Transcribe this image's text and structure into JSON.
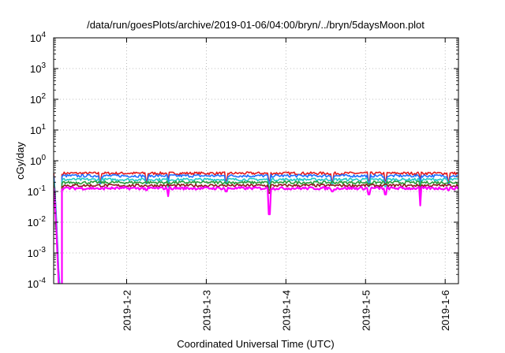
{
  "chart_data": {
    "type": "line",
    "title": "/data/run/goesPlots/archive/2019-01-06/04:00/bryn/../bryn/5daysMoon.plot",
    "xlabel": "Coordinated Universal Time (UTC)",
    "ylabel": "cGy/day",
    "xlim": [
      "2019-01-01T02:00",
      "2019-01-06T04:00"
    ],
    "ylim": [
      0.0001,
      10000
    ],
    "yscale": "log",
    "grid": true,
    "x_ticks": [
      "2019-01-02",
      "2019-01-03",
      "2019-01-04",
      "2019-01-05",
      "2019-01-06"
    ],
    "x_tick_labels": [
      "2019-1-2",
      "2019-1-3",
      "2019-1-4",
      "2019-1-5",
      "2019-1-6"
    ],
    "y_ticks": [
      {
        "value": 0.0001,
        "base": "10",
        "exp": "-4"
      },
      {
        "value": 0.001,
        "base": "10",
        "exp": "-3"
      },
      {
        "value": 0.01,
        "base": "10",
        "exp": "-2"
      },
      {
        "value": 0.1,
        "base": "10",
        "exp": "-1"
      },
      {
        "value": 1,
        "base": "10",
        "exp": "0"
      },
      {
        "value": 10,
        "base": "10",
        "exp": "1"
      },
      {
        "value": 100,
        "base": "10",
        "exp": "2"
      },
      {
        "value": 1000,
        "base": "10",
        "exp": "3"
      },
      {
        "value": 10000,
        "base": "10",
        "exp": "4"
      }
    ],
    "dip": {
      "start": "2019-01-01T02:00",
      "bottom": "2019-01-01T03:30",
      "recover": "2019-01-01T04:30"
    },
    "series": [
      {
        "color": "#e41a1c",
        "level": 0.4,
        "dip_min": 0.0001
      },
      {
        "color": "#1e6fff",
        "level": 0.33,
        "dip_min": 0.0003
      },
      {
        "color": "#22c8c8",
        "level": 0.25,
        "dip_min": 0.0002
      },
      {
        "color": "#2a9d3a",
        "level": 0.2,
        "dip_min": 0.0001
      },
      {
        "color": "#8b1a1a",
        "level": 0.16,
        "dip_min": 0.0001
      },
      {
        "color": "#ff00ff",
        "level": 0.13,
        "dip_min": 0.0001
      }
    ],
    "spikes": [
      {
        "x": "2019-01-01T16:00",
        "y": 0.12
      },
      {
        "x": "2019-01-02T06:00",
        "y": 0.11
      },
      {
        "x": "2019-01-02T12:30",
        "y": 0.07
      },
      {
        "x": "2019-01-03T06:00",
        "y": 0.1
      },
      {
        "x": "2019-01-03T19:00",
        "y": 0.018
      },
      {
        "x": "2019-01-04T14:00",
        "y": 0.1
      },
      {
        "x": "2019-01-05T01:00",
        "y": 0.08
      },
      {
        "x": "2019-01-05T06:00",
        "y": 0.08
      },
      {
        "x": "2019-01-05T16:30",
        "y": 0.035
      },
      {
        "x": "2019-01-06T01:00",
        "y": 0.11
      }
    ]
  }
}
